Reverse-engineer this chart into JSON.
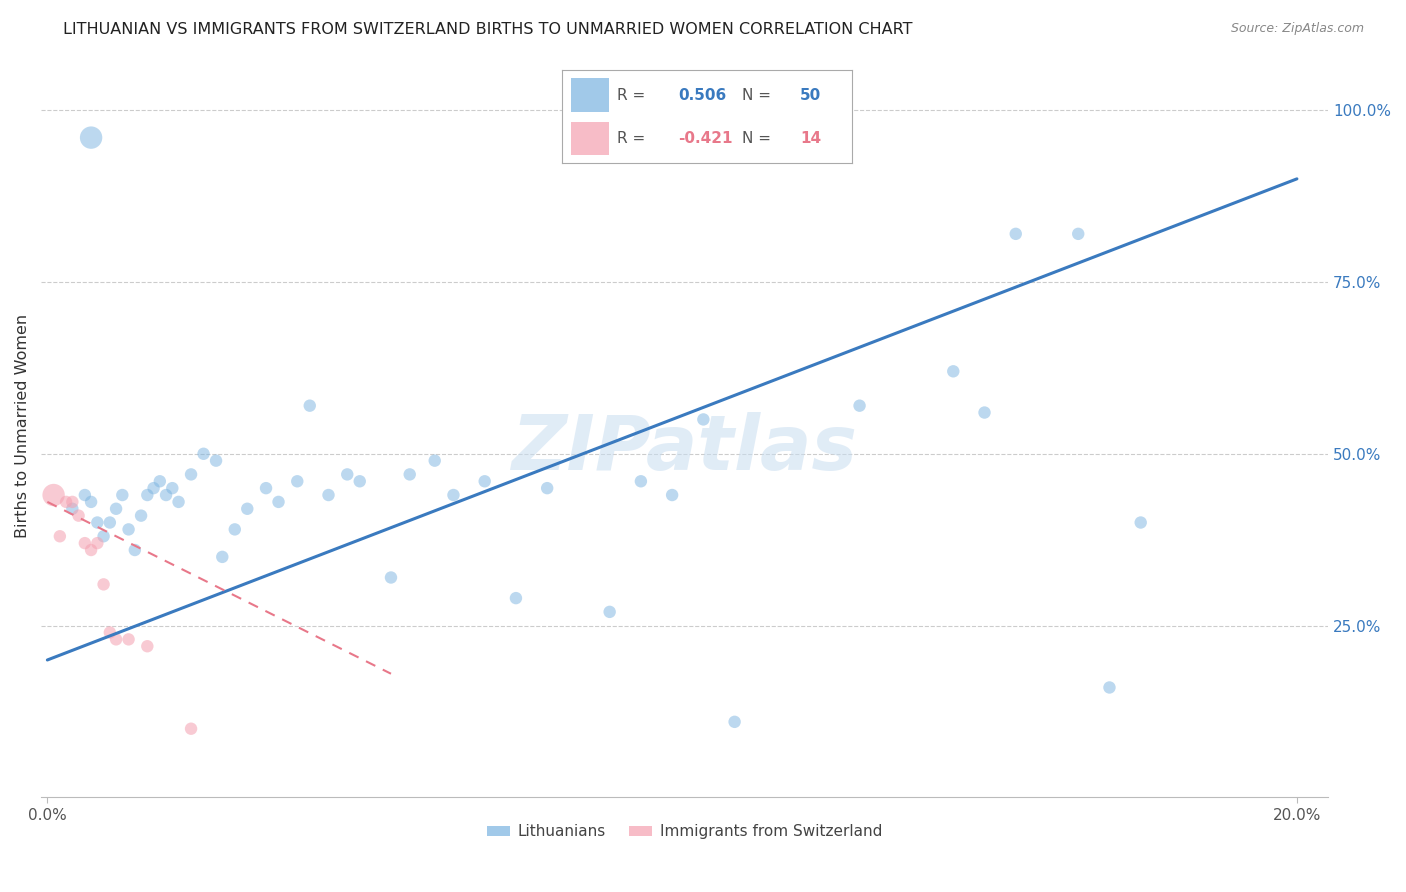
{
  "title": "LITHUANIAN VS IMMIGRANTS FROM SWITZERLAND BIRTHS TO UNMARRIED WOMEN CORRELATION CHART",
  "source": "Source: ZipAtlas.com",
  "ylabel": "Births to Unmarried Women",
  "ylabel_right_labels": [
    "100.0%",
    "75.0%",
    "50.0%",
    "25.0%"
  ],
  "ylabel_right_values": [
    1.0,
    0.75,
    0.5,
    0.25
  ],
  "ylim": [
    0.0,
    1.08
  ],
  "xlim": [
    -0.001,
    0.205
  ],
  "watermark": "ZIPatlas",
  "blue_color": "#7ab3e0",
  "pink_color": "#f4a0b0",
  "trendline_blue": "#3a7abf",
  "trendline_pink": "#e8788a",
  "grid_color": "#cccccc",
  "blue_x": [
    0.004,
    0.006,
    0.007,
    0.008,
    0.009,
    0.01,
    0.011,
    0.012,
    0.013,
    0.014,
    0.015,
    0.016,
    0.017,
    0.018,
    0.019,
    0.02,
    0.021,
    0.023,
    0.025,
    0.027,
    0.028,
    0.03,
    0.032,
    0.035,
    0.037,
    0.04,
    0.042,
    0.045,
    0.048,
    0.05,
    0.055,
    0.058,
    0.062,
    0.065,
    0.07,
    0.075,
    0.08,
    0.09,
    0.095,
    0.1,
    0.105,
    0.11,
    0.13,
    0.145,
    0.15,
    0.155,
    0.165,
    0.17,
    0.175,
    0.007
  ],
  "blue_y": [
    0.42,
    0.44,
    0.43,
    0.4,
    0.38,
    0.4,
    0.42,
    0.44,
    0.39,
    0.36,
    0.41,
    0.44,
    0.45,
    0.46,
    0.44,
    0.45,
    0.43,
    0.47,
    0.5,
    0.49,
    0.35,
    0.39,
    0.42,
    0.45,
    0.43,
    0.46,
    0.57,
    0.44,
    0.47,
    0.46,
    0.32,
    0.47,
    0.49,
    0.44,
    0.46,
    0.29,
    0.45,
    0.27,
    0.46,
    0.44,
    0.55,
    0.11,
    0.57,
    0.62,
    0.56,
    0.82,
    0.82,
    0.16,
    0.4,
    0.96
  ],
  "blue_sizes": [
    80,
    80,
    80,
    80,
    80,
    80,
    80,
    80,
    80,
    80,
    80,
    80,
    80,
    80,
    80,
    80,
    80,
    80,
    80,
    80,
    80,
    80,
    80,
    80,
    80,
    80,
    80,
    80,
    80,
    80,
    80,
    80,
    80,
    80,
    80,
    80,
    80,
    80,
    80,
    80,
    80,
    80,
    80,
    80,
    80,
    80,
    80,
    80,
    80,
    260
  ],
  "pink_x": [
    0.001,
    0.002,
    0.003,
    0.004,
    0.005,
    0.006,
    0.007,
    0.008,
    0.009,
    0.01,
    0.011,
    0.013,
    0.016,
    0.023
  ],
  "pink_y": [
    0.44,
    0.38,
    0.43,
    0.43,
    0.41,
    0.37,
    0.36,
    0.37,
    0.31,
    0.24,
    0.23,
    0.23,
    0.22,
    0.1
  ],
  "pink_sizes": [
    260,
    80,
    80,
    80,
    80,
    80,
    80,
    80,
    80,
    80,
    80,
    80,
    80,
    80
  ],
  "blue_trend_x": [
    0.0,
    0.2
  ],
  "blue_trend_y": [
    0.2,
    0.9
  ],
  "pink_trend_x": [
    0.0,
    0.055
  ],
  "pink_trend_y": [
    0.43,
    0.18
  ],
  "legend_r_blue": "0.506",
  "legend_n_blue": "50",
  "legend_r_pink": "-0.421",
  "legend_n_pink": "14",
  "legend_label_color": "#555555",
  "legend_value_blue": "#3a7abf",
  "legend_value_pink": "#e8788a"
}
